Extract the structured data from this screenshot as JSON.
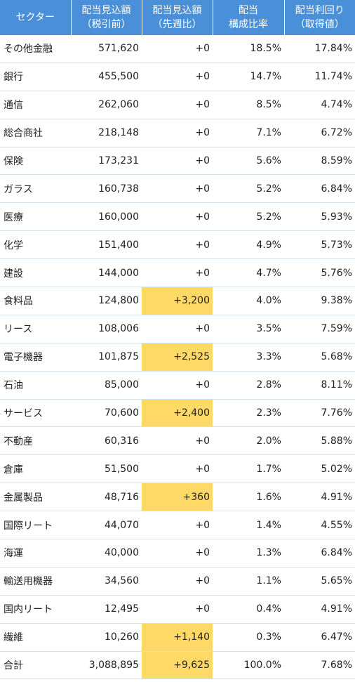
{
  "header": {
    "col0": "セクター",
    "col1_line1": "配当見込額",
    "col1_line2": "（税引前）",
    "col2_line1": "配当見込額",
    "col2_line2": "（先週比）",
    "col3_line1": "配当",
    "col3_line2": "構成比率",
    "col4_line1": "配当利回り",
    "col4_line2": "（取得値）"
  },
  "rows": [
    {
      "sector": "その他金融",
      "amount": "571,620",
      "change": "+0",
      "ratio": "18.5%",
      "yield": "17.84%",
      "highlight": false
    },
    {
      "sector": "銀行",
      "amount": "455,500",
      "change": "+0",
      "ratio": "14.7%",
      "yield": "11.74%",
      "highlight": false
    },
    {
      "sector": "通信",
      "amount": "262,060",
      "change": "+0",
      "ratio": "8.5%",
      "yield": "4.74%",
      "highlight": false
    },
    {
      "sector": "総合商社",
      "amount": "218,148",
      "change": "+0",
      "ratio": "7.1%",
      "yield": "6.72%",
      "highlight": false
    },
    {
      "sector": "保険",
      "amount": "173,231",
      "change": "+0",
      "ratio": "5.6%",
      "yield": "8.59%",
      "highlight": false
    },
    {
      "sector": "ガラス",
      "amount": "160,738",
      "change": "+0",
      "ratio": "5.2%",
      "yield": "6.84%",
      "highlight": false
    },
    {
      "sector": "医療",
      "amount": "160,000",
      "change": "+0",
      "ratio": "5.2%",
      "yield": "5.93%",
      "highlight": false
    },
    {
      "sector": "化学",
      "amount": "151,400",
      "change": "+0",
      "ratio": "4.9%",
      "yield": "5.73%",
      "highlight": false
    },
    {
      "sector": "建設",
      "amount": "144,000",
      "change": "+0",
      "ratio": "4.7%",
      "yield": "5.76%",
      "highlight": false
    },
    {
      "sector": "食料品",
      "amount": "124,800",
      "change": "+3,200",
      "ratio": "4.0%",
      "yield": "9.38%",
      "highlight": true
    },
    {
      "sector": "リース",
      "amount": "108,006",
      "change": "+0",
      "ratio": "3.5%",
      "yield": "7.59%",
      "highlight": false
    },
    {
      "sector": "電子機器",
      "amount": "101,875",
      "change": "+2,525",
      "ratio": "3.3%",
      "yield": "5.68%",
      "highlight": true
    },
    {
      "sector": "石油",
      "amount": "85,000",
      "change": "+0",
      "ratio": "2.8%",
      "yield": "8.11%",
      "highlight": false
    },
    {
      "sector": "サービス",
      "amount": "70,600",
      "change": "+2,400",
      "ratio": "2.3%",
      "yield": "7.76%",
      "highlight": true
    },
    {
      "sector": "不動産",
      "amount": "60,316",
      "change": "+0",
      "ratio": "2.0%",
      "yield": "5.88%",
      "highlight": false
    },
    {
      "sector": "倉庫",
      "amount": "51,500",
      "change": "+0",
      "ratio": "1.7%",
      "yield": "5.02%",
      "highlight": false
    },
    {
      "sector": "金属製品",
      "amount": "48,716",
      "change": "+360",
      "ratio": "1.6%",
      "yield": "4.91%",
      "highlight": true
    },
    {
      "sector": "国際リート",
      "amount": "44,070",
      "change": "+0",
      "ratio": "1.4%",
      "yield": "4.55%",
      "highlight": false
    },
    {
      "sector": "海運",
      "amount": "40,000",
      "change": "+0",
      "ratio": "1.3%",
      "yield": "6.84%",
      "highlight": false
    },
    {
      "sector": "輸送用機器",
      "amount": "34,560",
      "change": "+0",
      "ratio": "1.1%",
      "yield": "5.65%",
      "highlight": false
    },
    {
      "sector": "国内リート",
      "amount": "12,495",
      "change": "+0",
      "ratio": "0.4%",
      "yield": "4.91%",
      "highlight": false
    },
    {
      "sector": "繊維",
      "amount": "10,260",
      "change": "+1,140",
      "ratio": "0.3%",
      "yield": "6.47%",
      "highlight": true
    },
    {
      "sector": "合計",
      "amount": "3,088,895",
      "change": "+9,625",
      "ratio": "100.0%",
      "yield": "7.68%",
      "highlight": true
    }
  ],
  "colors": {
    "header_bg": "#4a90d9",
    "highlight_bg": "#ffd966",
    "row_border": "#cfe0ee"
  }
}
